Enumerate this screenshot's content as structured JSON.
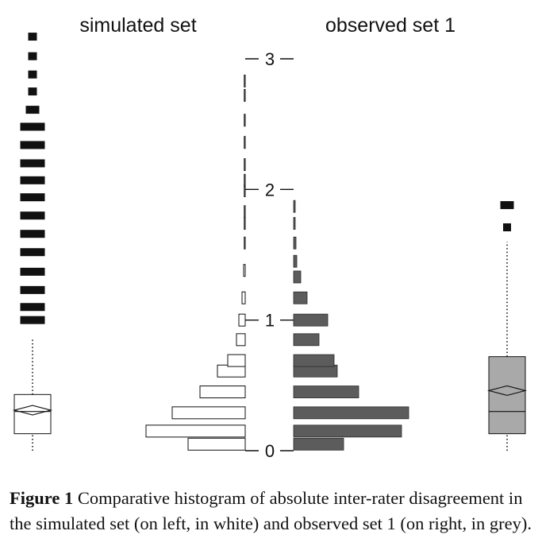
{
  "caption": {
    "label": "Figure 1",
    "text": "Comparative histogram of absolute inter-rater disagreement in the simulated set (on left, in white) and observed set 1 (on right, in grey)."
  },
  "chart_data": {
    "type": "bar",
    "orientation": "horizontal",
    "panel_titles": [
      "simulated set",
      "observed set 1"
    ],
    "yticks": [
      0,
      1,
      2,
      3
    ],
    "ylim": [
      0,
      3
    ],
    "grid": false,
    "colors": {
      "simulated": "#ffffff",
      "observed": "#5c5c5c",
      "boxplot_fill": "#a9a9a9"
    },
    "series": [
      {
        "bins": [
          {
            "y": 0.05,
            "value": 72
          },
          {
            "y": 0.15,
            "value": 125
          },
          {
            "y": 0.29,
            "value": 92
          },
          {
            "y": 0.45,
            "value": 57
          },
          {
            "y": 0.61,
            "value": 35
          },
          {
            "y": 0.69,
            "value": 22
          },
          {
            "y": 0.85,
            "value": 11
          },
          {
            "y": 1.0,
            "value": 8
          },
          {
            "y": 1.17,
            "value": 4
          },
          {
            "y": 1.38,
            "value": 2
          },
          {
            "y": 1.59,
            "value": 1
          },
          {
            "y": 1.74,
            "value": 1
          },
          {
            "y": 1.83,
            "value": 1
          },
          {
            "y": 1.99,
            "value": 1
          },
          {
            "y": 2.07,
            "value": 1
          },
          {
            "y": 2.19,
            "value": 0.5
          },
          {
            "y": 2.36,
            "value": 0.5
          },
          {
            "y": 2.53,
            "value": 0.5
          },
          {
            "y": 2.72,
            "value": 0.5
          },
          {
            "y": 2.83,
            "value": 0.5
          }
        ]
      },
      {
        "bins": [
          {
            "y": 0.05,
            "value": 63
          },
          {
            "y": 0.15,
            "value": 136
          },
          {
            "y": 0.29,
            "value": 145
          },
          {
            "y": 0.45,
            "value": 82
          },
          {
            "y": 0.61,
            "value": 55
          },
          {
            "y": 0.69,
            "value": 51
          },
          {
            "y": 0.85,
            "value": 32
          },
          {
            "y": 1.0,
            "value": 43
          },
          {
            "y": 1.17,
            "value": 17
          },
          {
            "y": 1.33,
            "value": 9
          },
          {
            "y": 1.45,
            "value": 4
          },
          {
            "y": 1.59,
            "value": 3
          },
          {
            "y": 1.74,
            "value": 2
          },
          {
            "y": 1.87,
            "value": 2
          }
        ]
      }
    ],
    "boxplots": [
      {
        "min": 0.0,
        "q1": 0.13,
        "median": 0.3,
        "mean": 0.31,
        "q3": 0.43,
        "whisker_high": 0.86,
        "outliers": [
          1.0,
          1.1,
          1.23,
          1.37,
          1.52,
          1.66,
          1.8,
          1.94,
          2.07,
          2.2,
          2.34,
          2.48,
          2.61,
          2.75,
          2.88,
          3.02,
          3.17
        ]
      },
      {
        "min": 0.0,
        "q1": 0.13,
        "median": 0.3,
        "mean": 0.46,
        "q3": 0.72,
        "whisker_high": 1.6,
        "outliers": [
          1.71,
          1.88
        ]
      }
    ]
  }
}
